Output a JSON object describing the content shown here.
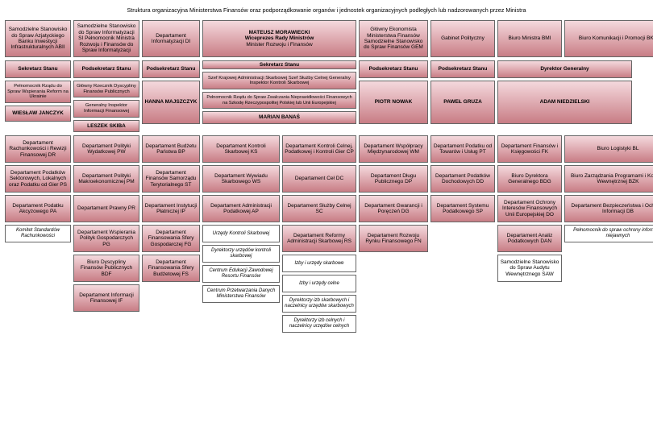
{
  "title": "Struktura organizacyjna Ministerstwa Finansów oraz podporządkowanie organów i jednostek organizacyjnych podległych lub nadzorowanych przez Ministra",
  "top": {
    "c1": "Samodzielne Stanowisko do Spraw Azjatyckiego Banku Inwestycji Infrastrukturalnych ABII",
    "c2": "Samodzielne Stanowisko do Spraw Informatyzacji SI Pełnomocnik Ministra Rozwoju i Finansów do Spraw Informatyzacji",
    "c3": "Departament Informatyzacji DI",
    "c4a": "MATEUSZ MORAWIECKI",
    "c4b": "Wiceprezes Rady Ministrów",
    "c4c": "Minister Rozwoju i Finansów",
    "c5": "Główny Ekonomista Ministerstwa Finansów Samodzielne Stanowisko do Spraw Finansów GEM",
    "c6": "Gabinet Polityczny",
    "c7": "Biuro Ministra BMI",
    "c8": "Biuro Komunikacji i Promocji BKP"
  },
  "row_sek": {
    "c1": "Sekretarz Stanu",
    "c2": "Podsekretarz Stanu",
    "c3": "Podsekretarz Stanu",
    "band": "Sekretarz Stanu",
    "c4": "Szef Krajowej Administracji Skarbowej Szef Służby Celnej Generalny Inspektor Kontroli Skarbowej",
    "c6": "Podsekretarz Stanu",
    "c7": "Podsekretarz Stanu",
    "c8": "Dyrektor Generalny"
  },
  "row_sub": {
    "c1": "Pełnomocnik Rządu do Spraw Wspierania Reform na Ukrainie",
    "c2": "Główny Rzecznik Dyscypliny Finansów Publicznych"
  },
  "row_sub2": {
    "c2": "Generalny Inspektor Informacji Finansowej",
    "c4": "Pełnomocnik Rządu do Spraw Zwalczania Nieprawidłowości Finansowych na Szkodę Rzeczypospolitej Polskiej lub Unii Europejskiej"
  },
  "row_names": {
    "c1": "WIESŁAW JANCZYK",
    "c2": "LESZEK SKIBA",
    "c3": "HANNA MAJSZCZYK",
    "c4": "MARIAN BANAŚ",
    "c6": "PIOTR NOWAK",
    "c7": "PAWEŁ GRUZA",
    "c8": "ADAM NIEDZIELSKI"
  },
  "depts": {
    "c1": [
      "Departament Rachunkowości i Rewizji Finansowej DR",
      "Departament Podatków Sektorowych, Lokalnych oraz Podatku od Gier PS",
      "Departament Podatku Akcyzowego PA",
      "Komitet Standardów Rachunkowości"
    ],
    "c2": [
      "Departament Polityki Wydatkowej PW",
      "Departament Polityki Makroekonomicznej PM",
      "Departament Prawny PR",
      "Departament Wspierania Polityk Gospodarczych PG",
      "Biuro Dyscypliny Finansów Publicznych BDF",
      "Departament Informacji Finansowej IF"
    ],
    "c3": [
      "Departament Budżetu Państwa BP",
      "Departament Finansów Samorządu Terytorialnego ST",
      "Departament Instytucji Płatniczej IP",
      "Departament Finansowania Sfery Gospodarczej FG",
      "Departament Finansowania Sfery Budżetowej FS"
    ],
    "c4": [
      "Departament Kontroli Skarbowej KS",
      "Departament Wywiadu Skarbowego WS",
      "Departament Administracji Podatkowej AP",
      "Urzędy Kontroli Skarbowej",
      "Dyrektorzy urzędów kontroli skarbowej",
      "Centrum Edukacji Zawodowej Resortu Finansów",
      "Centrum Przetwarzania Danych Ministerstwa Finansów"
    ],
    "c5": [
      "Departament Kontroli Celnej, Podatkowej i Kontroli Gier CP",
      "Departament Ceł DC",
      "Departament Służby Celnej SC",
      "Departament Reformy Administracji Skarbowej RS",
      "Izby i urzędy skarbowe",
      "Izby i urzędy celne",
      "Dyrektorzy izb skarbowych i naczelnicy urzędów skarbowych",
      "Dyrektorzy izb celnych i naczelnicy urzędów celnych"
    ],
    "c6": [
      "Departament Współpracy Międzynarodowej WM",
      "Departament Długu Publicznego DP",
      "Departament Gwarancji i Poręczeń DG",
      "Departament Rozwoju Rynku Finansowego FN"
    ],
    "c7": [
      "Departament Podatku od Towarów i Usług PT",
      "Departament Podatków Dochodowych DD",
      "Departament Systemu Podatkowego SP"
    ],
    "c8": [
      "Departament Finansów i Księgowości FK",
      "Biuro Dyrektora Generalnego BDG",
      "Departament Ochrony Interesów Finansowych Unii Europejskiej DO",
      "Departament Analiz Podatkowych DAN",
      "Samodzielne Stanowisko do Spraw Audytu Wewnętrznego SAW"
    ],
    "c9": [
      "Biuro Logistyki BL",
      "Biuro Zarządzania Programami i Kontroli Wewnętrznej BZK",
      "Departament Bezpieczeństwa i Ochrony Informacji DB",
      "Pełnomocnik do spraw ochrony informacji niejawnych"
    ]
  },
  "colors": {
    "grad_top": "#f4d9dd",
    "grad_bot": "#c87d85",
    "border": "#666666",
    "bg": "#ffffff"
  }
}
